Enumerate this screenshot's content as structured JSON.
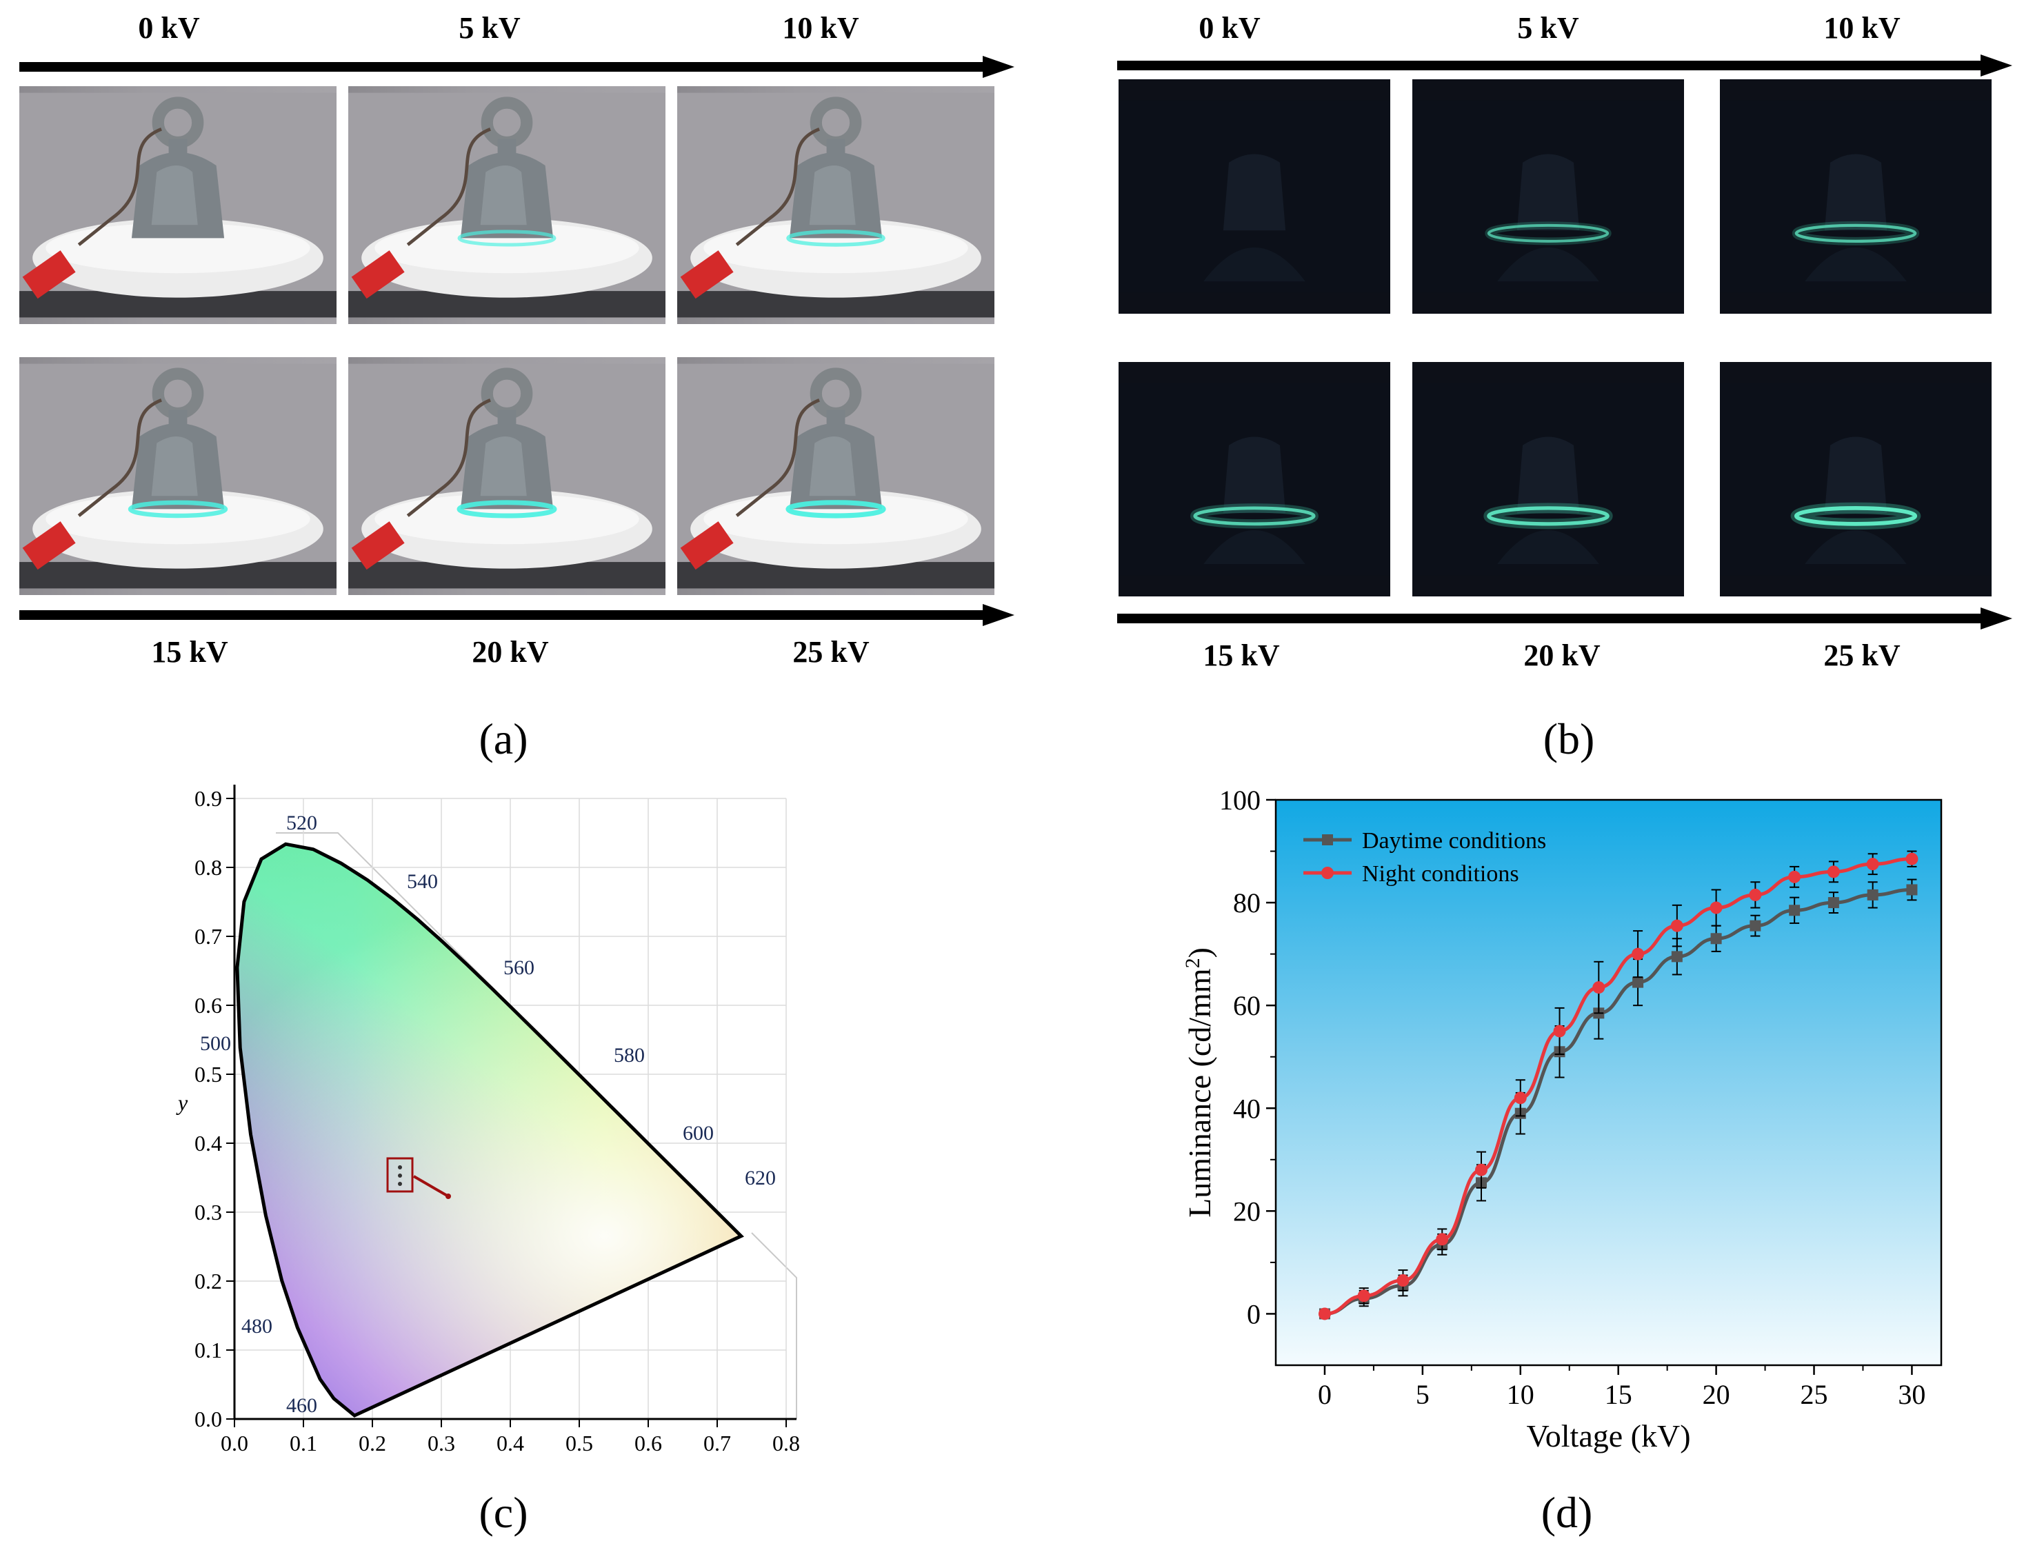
{
  "panel_a": {
    "top_labels": [
      "0 kV",
      "5 kV",
      "10 kV"
    ],
    "bottom_labels": [
      "15 kV",
      "20 kV",
      "25 kV"
    ],
    "caption": "(a)",
    "photos": [
      "daylight insulator 0 kV",
      "daylight insulator 5 kV",
      "daylight insulator 10 kV",
      "daylight insulator 15 kV",
      "daylight insulator 20 kV",
      "daylight insulator 25 kV"
    ],
    "glow_intensity": [
      0.0,
      0.45,
      0.55,
      0.75,
      0.85,
      0.9
    ]
  },
  "panel_b": {
    "top_labels": [
      "0 kV",
      "5 kV",
      "10 kV"
    ],
    "bottom_labels": [
      "15 kV",
      "20 kV",
      "25 kV"
    ],
    "caption": "(b)",
    "glow_intensity": [
      0.0,
      0.45,
      0.55,
      0.7,
      0.85,
      1.0
    ]
  },
  "panel_c": {
    "caption": "(c)",
    "y_axis_label": "y",
    "x_ticks": [
      "0.0",
      "0.1",
      "0.2",
      "0.3",
      "0.4",
      "0.5",
      "0.6",
      "0.7",
      "0.8"
    ],
    "y_ticks": [
      "0.0",
      "0.1",
      "0.2",
      "0.3",
      "0.4",
      "0.5",
      "0.6",
      "0.7",
      "0.8",
      "0.9"
    ],
    "wavelength_labels": [
      "460",
      "480",
      "500",
      "520",
      "540",
      "560",
      "580",
      "600",
      "620"
    ],
    "marker_point": {
      "x": 0.24,
      "y": 0.35
    }
  },
  "chart_data": {
    "type": "line",
    "caption": "(d)",
    "xlabel": "Voltage (kV)",
    "ylabel_main": "Luminance (cd/mm",
    "ylabel_sup": "2",
    "ylabel_close": ")",
    "xlim": [
      -2.5,
      31.5
    ],
    "ylim": [
      -10,
      100
    ],
    "x_ticks": [
      0,
      5,
      10,
      15,
      20,
      25,
      30
    ],
    "y_ticks": [
      0,
      20,
      40,
      60,
      80,
      100
    ],
    "x": [
      0,
      2,
      4,
      6,
      8,
      10,
      12,
      14,
      16,
      18,
      20,
      22,
      24,
      26,
      28,
      30
    ],
    "series": [
      {
        "name": "Daytime conditions",
        "color": "#555555",
        "marker": "square",
        "values": [
          0,
          3,
          5.5,
          13.5,
          25.5,
          39,
          51,
          58.5,
          64.5,
          69.5,
          73,
          75.5,
          78.5,
          80,
          81.5,
          82.5
        ],
        "errors": [
          0,
          1.5,
          2,
          2,
          3.5,
          4,
          5,
          5,
          4.5,
          3.5,
          2.5,
          2,
          2.5,
          2,
          2.5,
          2
        ]
      },
      {
        "name": "Night conditions",
        "color": "#e8383d",
        "marker": "circle",
        "values": [
          0,
          3.5,
          6.5,
          14.5,
          28,
          42,
          55,
          63.5,
          70,
          75.5,
          79,
          81.5,
          85,
          86,
          87.5,
          88.5
        ],
        "errors": [
          0,
          1.5,
          2,
          2,
          3.5,
          3.5,
          4.5,
          5,
          4.5,
          4,
          3.5,
          2.5,
          2,
          2,
          2,
          1.5
        ]
      }
    ]
  }
}
